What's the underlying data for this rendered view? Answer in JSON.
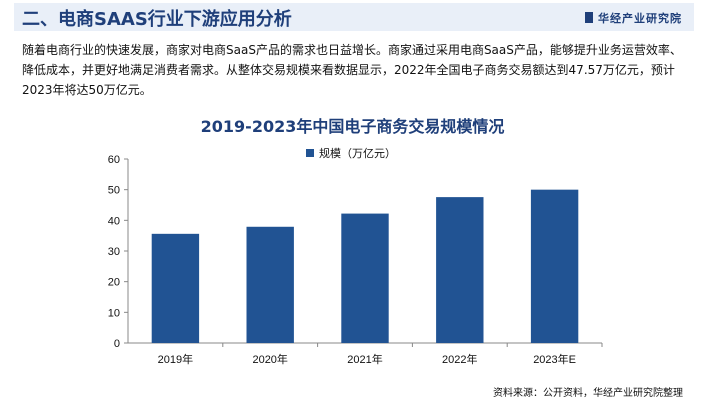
{
  "header": {
    "title": "二、电商SAAS行业下游应用分析",
    "brand": "华经产业研究院"
  },
  "intro": "随着电商行业的快速发展，商家对电商SaaS产品的需求也日益增长。商家通过采用电商SaaS产品，能够提升业务运营效率、降低成本，并更好地满足消费者需求。从整体交易规模来看数据显示，2022年全国电子商务交易额达到47.57万亿元，预计2023年将达50万亿元。",
  "source": "资料来源：公开资料，华经产业研究院整理",
  "chart_data": {
    "type": "bar",
    "title": "2019-2023年中国电子商务交易规模情况",
    "categories": [
      "2019年",
      "2020年",
      "2021年",
      "2022年",
      "2023年E"
    ],
    "series": [
      {
        "name": "规模（万亿元）",
        "values": [
          35.6,
          37.9,
          42.2,
          47.57,
          50
        ],
        "color": "#215393"
      }
    ],
    "ylim": [
      0,
      60
    ],
    "yticks": [
      0,
      10,
      20,
      30,
      40,
      50,
      60
    ],
    "legend": "top",
    "grid": false
  }
}
